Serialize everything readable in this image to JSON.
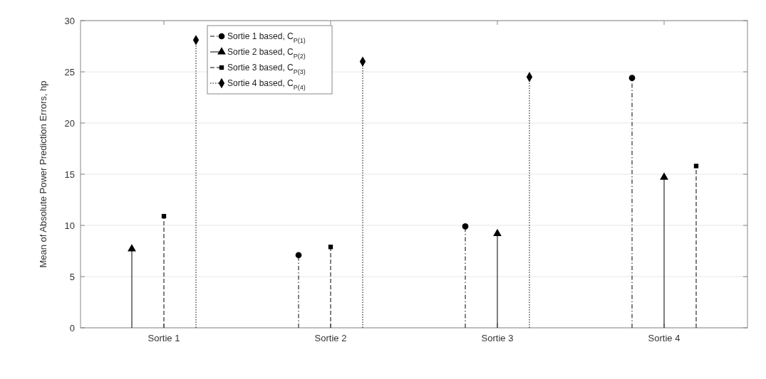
{
  "chart_data": {
    "type": "lollipop",
    "ylabel": "Mean of Absolute Power Prediction Errors, hp",
    "categories": [
      "Sortie 1",
      "Sortie 2",
      "Sortie 3",
      "Sortie 4"
    ],
    "ylim": [
      0,
      30
    ],
    "yticks": [
      0,
      5,
      10,
      15,
      20,
      25,
      30
    ],
    "grid": "y",
    "legend": "top left",
    "series": [
      {
        "name": "Sortie 1 based, C$_{P(1)}$",
        "color": "#000000",
        "marker": "circle",
        "line_style": "dashdot",
        "values": [
          null,
          7.1,
          9.9,
          24.4
        ]
      },
      {
        "name": "Sortie 2 based, C$_{P(2)}$",
        "color": "#000000",
        "marker": "triangle",
        "line_style": "solid",
        "values": [
          7.7,
          null,
          9.2,
          14.7
        ]
      },
      {
        "name": "Sortie 3 based, C$_{P(3)}$",
        "color": "#000000",
        "marker": "square",
        "line_style": "dashed",
        "values": [
          10.9,
          7.9,
          null,
          15.8
        ]
      },
      {
        "name": "Sortie 4 based, C$_{P(4)}$",
        "color": "#000000",
        "marker": "diamond",
        "line_style": "dotted",
        "values": [
          28.1,
          26.0,
          24.5,
          null
        ]
      }
    ]
  }
}
